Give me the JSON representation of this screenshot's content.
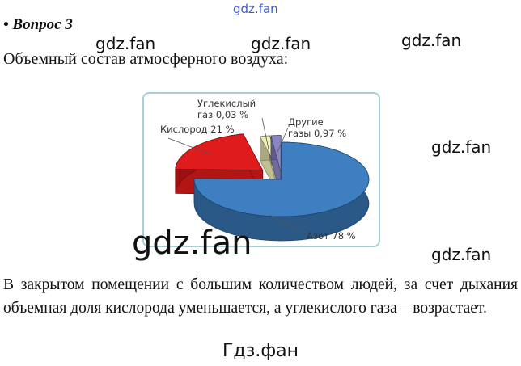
{
  "watermarks": [
    "gdz.fan",
    "gdz.fan",
    "gdz.fan",
    "gdz.fan",
    "gdz.fan",
    "gdz.fan",
    "gdz.fan"
  ],
  "question": "• Вопрос 3",
  "subtitle": "Объемный состав атмосферного воздуха:",
  "chart_data": {
    "type": "pie",
    "style": "3d-exploded",
    "slices": [
      {
        "label_lines": [
          "Азот 78 %"
        ],
        "value": 78,
        "color": "#3d7fc1"
      },
      {
        "label_lines": [
          "Кислород 21 %"
        ],
        "value": 21,
        "color": "#e01b1b"
      },
      {
        "label_lines": [
          "Углекислый",
          "газ 0,03 %"
        ],
        "value": 0.03,
        "color": "#f3f0b8"
      },
      {
        "label_lines": [
          "Другие",
          "газы 0,97 %"
        ],
        "value": 0.97,
        "color": "#8a86c6"
      }
    ]
  },
  "paragraph": "В закрытом помещении с большим количеством людей, за счет дыхания объемная доля кислорода уменьшается, а углекислого газа – возрастает.",
  "footer": "Гдз.фан"
}
